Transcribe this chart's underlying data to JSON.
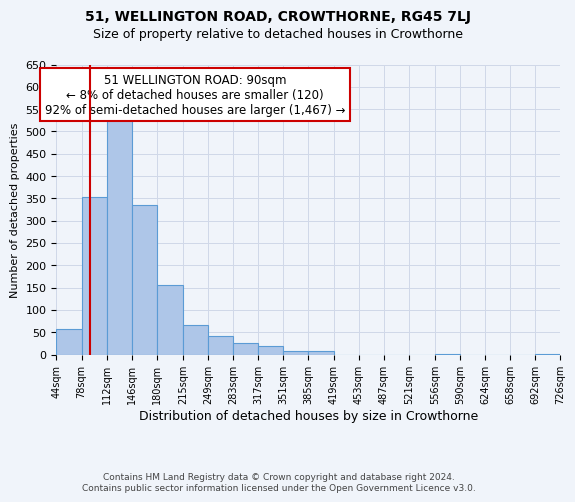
{
  "title": "51, WELLINGTON ROAD, CROWTHORNE, RG45 7LJ",
  "subtitle": "Size of property relative to detached houses in Crowthorne",
  "xlabel": "Distribution of detached houses by size in Crowthorne",
  "ylabel": "Number of detached properties",
  "footer_line1": "Contains HM Land Registry data © Crown copyright and database right 2024.",
  "footer_line2": "Contains public sector information licensed under the Open Government Licence v3.0.",
  "annotation_title": "51 WELLINGTON ROAD: 90sqm",
  "annotation_line2": "← 8% of detached houses are smaller (120)",
  "annotation_line3": "92% of semi-detached houses are larger (1,467) →",
  "bar_edges": [
    44,
    78,
    112,
    146,
    180,
    215,
    249,
    283,
    317,
    351,
    385,
    419,
    453,
    487,
    521,
    556,
    590,
    624,
    658,
    692,
    726
  ],
  "bar_heights": [
    57,
    353,
    540,
    335,
    155,
    67,
    42,
    25,
    20,
    8,
    8,
    0,
    0,
    0,
    0,
    2,
    0,
    0,
    0,
    2
  ],
  "tick_labels": [
    "44sqm",
    "78sqm",
    "112sqm",
    "146sqm",
    "180sqm",
    "215sqm",
    "249sqm",
    "283sqm",
    "317sqm",
    "351sqm",
    "385sqm",
    "419sqm",
    "453sqm",
    "487sqm",
    "521sqm",
    "556sqm",
    "590sqm",
    "624sqm",
    "658sqm",
    "692sqm",
    "726sqm"
  ],
  "bar_color": "#aec6e8",
  "bar_edge_color": "#5b9bd5",
  "vline_x": 90,
  "vline_color": "#cc0000",
  "ylim": [
    0,
    650
  ],
  "yticks": [
    0,
    50,
    100,
    150,
    200,
    250,
    300,
    350,
    400,
    450,
    500,
    550,
    600,
    650
  ],
  "annotation_box_color": "#ffffff",
  "annotation_box_edgecolor": "#cc0000",
  "grid_color": "#d0d8e8",
  "bg_color": "#f0f4fa"
}
